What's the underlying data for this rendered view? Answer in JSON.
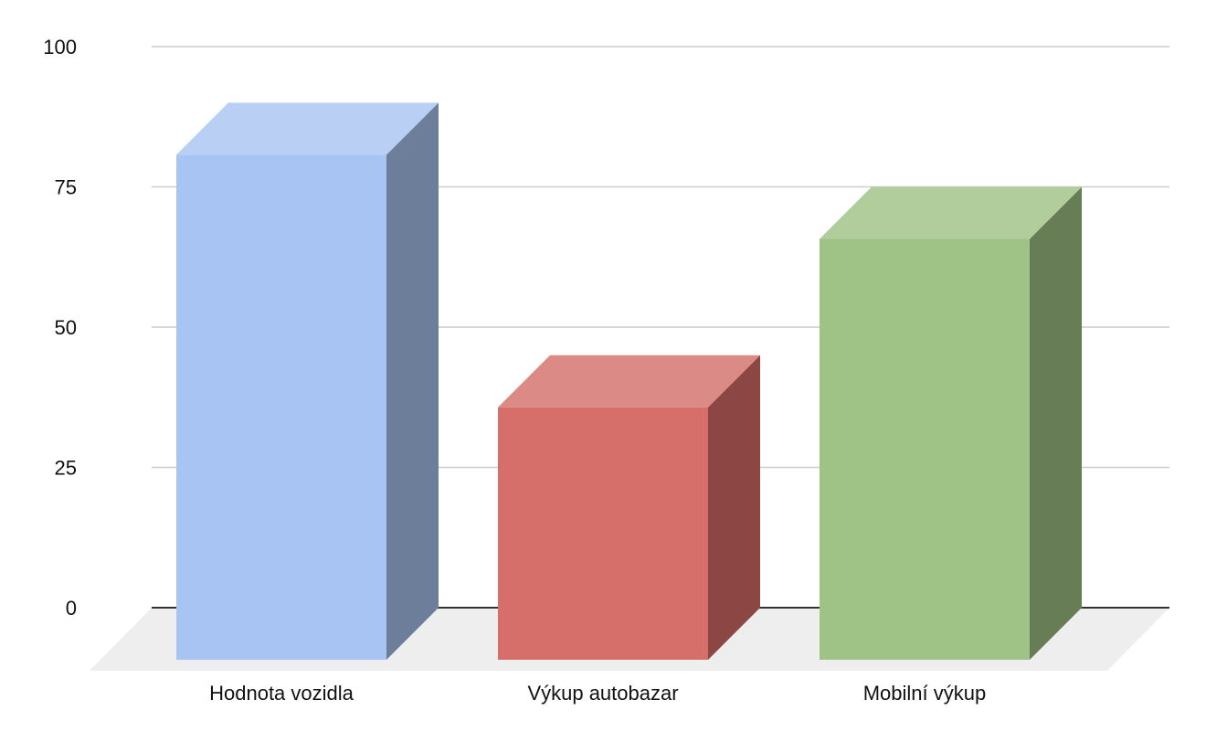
{
  "chart_data": {
    "type": "bar",
    "style": "3d",
    "categories": [
      "Hodnota vozidla",
      "Výkup autobazar",
      "Mobilní výkup"
    ],
    "values": [
      90,
      45,
      75
    ],
    "colors": [
      "#a8c4f2",
      "#d66e6a",
      "#9fc387"
    ],
    "side_colors": [
      "#6d7e9b",
      "#8c4745",
      "#667d56"
    ],
    "top_colors": [
      "#b9cff4",
      "#dc8a86",
      "#b0cd9b"
    ],
    "yticks": [
      0,
      25,
      50,
      75,
      100
    ],
    "ylim": [
      0,
      100
    ],
    "grid": true,
    "floor_color": "#eeeeee",
    "title": "",
    "xlabel": "",
    "ylabel": ""
  }
}
